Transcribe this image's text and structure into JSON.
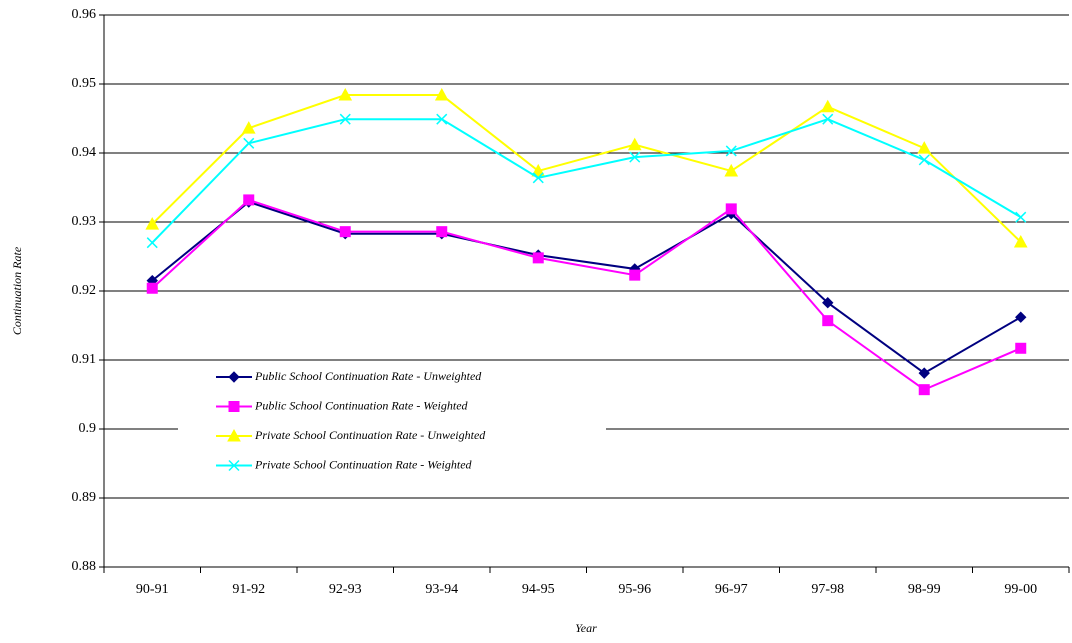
{
  "chart_data": {
    "type": "line",
    "x_label": "Year",
    "y_label": "Continuation Rate",
    "categories": [
      "90-91",
      "91-92",
      "92-93",
      "93-94",
      "94-95",
      "95-96",
      "96-97",
      "97-98",
      "98-99",
      "99-00"
    ],
    "series": [
      {
        "name": "Public School Continuation Rate - Unweighted",
        "color": "#000080",
        "marker": "diamond",
        "values": [
          0.9215,
          0.9329,
          0.9283,
          0.9283,
          0.9252,
          0.9232,
          0.9312,
          0.9183,
          0.9081,
          0.9162
        ]
      },
      {
        "name": "Public School Continuation Rate - Weighted",
        "color": "#ff00ff",
        "marker": "square",
        "values": [
          0.9204,
          0.9332,
          0.9286,
          0.9286,
          0.9248,
          0.9223,
          0.9319,
          0.9157,
          0.9057,
          0.9117
        ]
      },
      {
        "name": "Private School Continuation Rate - Unweighted",
        "color": "#ffff00",
        "marker": "triangle",
        "values": [
          0.9297,
          0.9436,
          0.9484,
          0.9484,
          0.9374,
          0.9412,
          0.9374,
          0.9467,
          0.9407,
          0.9271
        ]
      },
      {
        "name": "Private School Continuation Rate - Weighted",
        "color": "#00ffff",
        "marker": "x",
        "values": [
          0.927,
          0.9414,
          0.9449,
          0.9449,
          0.9364,
          0.9394,
          0.9403,
          0.9449,
          0.939,
          0.9307
        ]
      }
    ],
    "ylim": [
      0.88,
      0.96
    ],
    "yticks": [
      0.88,
      0.89,
      0.9,
      0.91,
      0.92,
      0.93,
      0.94,
      0.95,
      0.96
    ],
    "grid": true,
    "legend": "lower left"
  }
}
